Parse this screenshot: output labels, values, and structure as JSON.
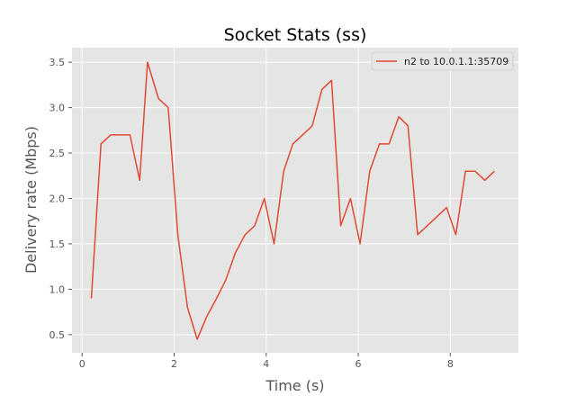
{
  "chart_data": {
    "type": "line",
    "title": "Socket Stats (ss)",
    "xlabel": "Time (s)",
    "ylabel": "Delivery rate (Mbps)",
    "xlim": [
      -0.22,
      9.48
    ],
    "ylim": [
      0.3,
      3.66
    ],
    "xticks": [
      0,
      2,
      4,
      6,
      8
    ],
    "yticks": [
      0.5,
      1.0,
      1.5,
      2.0,
      2.5,
      3.0,
      3.5
    ],
    "xtick_labels": [
      "0",
      "2",
      "4",
      "6",
      "8"
    ],
    "ytick_labels": [
      "0.5",
      "1.0",
      "1.5",
      "2.0",
      "2.5",
      "3.0",
      "3.5"
    ],
    "grid": true,
    "legend_position": "top-right",
    "style": "ggplot",
    "colors": {
      "plot_background": "#e5e5e5",
      "grid": "#ffffff",
      "series": "#e24a33"
    },
    "series": [
      {
        "name": "n2 to 10.0.1.1:35709",
        "x": [
          0.2,
          0.41,
          0.62,
          0.83,
          1.04,
          1.25,
          1.42,
          1.66,
          1.87,
          2.08,
          2.29,
          2.5,
          2.71,
          2.92,
          3.12,
          3.33,
          3.54,
          3.75,
          3.96,
          4.17,
          4.38,
          4.58,
          4.79,
          5.0,
          5.21,
          5.42,
          5.62,
          5.83,
          6.04,
          6.25,
          6.46,
          6.67,
          6.88,
          7.08,
          7.29,
          7.5,
          7.71,
          7.92,
          8.12,
          8.33,
          8.54,
          8.75,
          8.96
        ],
        "y": [
          0.9,
          2.6,
          2.7,
          2.7,
          2.7,
          2.2,
          3.5,
          3.1,
          3.0,
          1.6,
          0.8,
          0.45,
          0.7,
          0.9,
          1.1,
          1.4,
          1.6,
          1.7,
          2.0,
          1.5,
          2.3,
          2.6,
          2.7,
          2.8,
          3.2,
          3.3,
          1.7,
          2.0,
          1.5,
          2.3,
          2.6,
          2.6,
          2.9,
          2.8,
          1.6,
          1.7,
          1.8,
          1.9,
          1.6,
          2.3,
          2.3,
          2.2,
          2.3
        ]
      }
    ]
  }
}
